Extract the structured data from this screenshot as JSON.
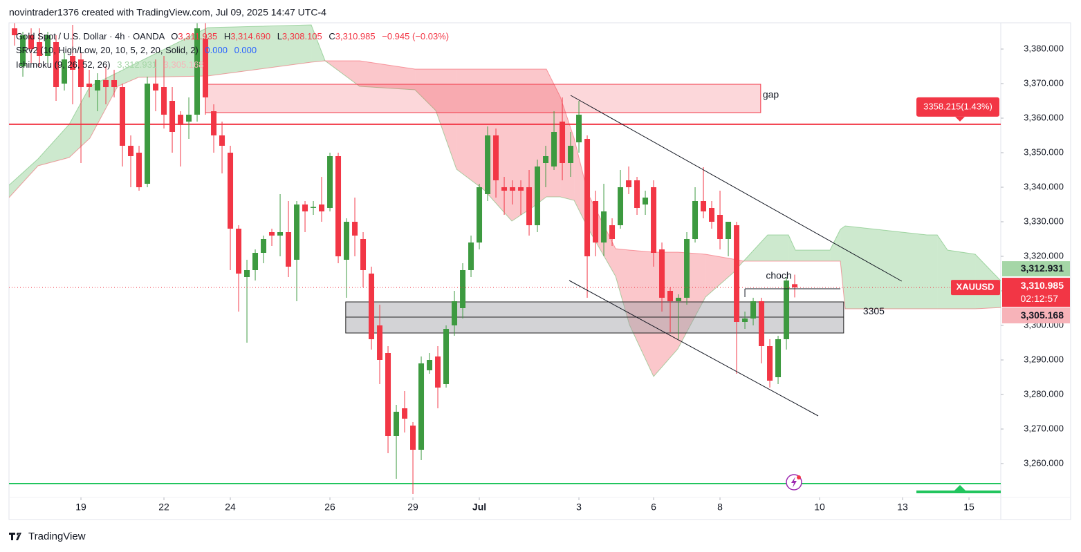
{
  "header": {
    "title": "novintrader1376 created with TradingView.com, Jul 09, 2025 14:47 UTC-4"
  },
  "footer": {
    "brand": "TradingView"
  },
  "chart_data": {
    "type": "candlestick",
    "symbol": "XAUUSD",
    "legend": {
      "instrument": "Gold Spot / U.S. Dollar · 4h · OANDA",
      "fields": [
        {
          "key": "O",
          "value": "3,311.935"
        },
        {
          "key": "H",
          "value": "3,314.690"
        },
        {
          "key": "L",
          "value": "3,308.105"
        },
        {
          "key": "C",
          "value": "3,310.985"
        }
      ],
      "change": "−0.945 (−0.03%)",
      "sr_name": "SRv2 (10, High/Low, 20, 10, 5, 2, 20, Solid, 2)",
      "sr_labels": [
        "0.000",
        "0.000"
      ]
    },
    "colors": {
      "up": "#3d9a40",
      "down": "#f23645"
    },
    "open": [
      3386,
      3375,
      3384,
      3382,
      3378,
      3382,
      3370,
      3378,
      3377,
      3370,
      3368,
      3371,
      3371,
      3369,
      3352,
      3350,
      3341,
      3370,
      3369,
      3365,
      3361,
      3359,
      3361,
      3383,
      3362,
      3355,
      3350,
      3328,
      3314,
      3316,
      3321,
      3327,
      3326,
      3327,
      3319,
      3335,
      3334,
      3335,
      3334,
      3349,
      3319,
      3330,
      3325,
      3315,
      3300,
      3292,
      3268,
      3276,
      3271,
      3264,
      3287,
      3291,
      3283,
      3300,
      3305,
      3316,
      3324,
      3338,
      3355,
      3340,
      3340,
      3340,
      3340,
      3329,
      3347,
      3346,
      3359,
      3347,
      3353,
      3354,
      3336,
      3324,
      3329,
      3329,
      3342,
      3342,
      3335,
      3340,
      3322,
      3310,
      3307,
      3308,
      3325,
      3336,
      3334,
      3332,
      3325,
      3329,
      3301,
      3302,
      3307,
      3294,
      3285,
      3296,
      3311.935
    ],
    "high": [
      3387.5,
      3385,
      3386,
      3386,
      3385,
      3384,
      3379,
      3387,
      3379,
      3374,
      3373,
      3375,
      3374,
      3370,
      3355,
      3352,
      3372,
      3377,
      3378,
      3369,
      3362,
      3366,
      3387.5,
      3387.5,
      3364,
      3359,
      3352,
      3329,
      3319,
      3322,
      3326,
      3328,
      3338,
      3336,
      3336,
      3336,
      3336,
      3343,
      3350,
      3350,
      3331,
      3337,
      3327,
      3317,
      3306,
      3294,
      3277,
      3281,
      3272,
      3291,
      3292,
      3294,
      3300,
      3310,
      3318,
      3326,
      3341,
      3357.6,
      3357,
      3343,
      3342,
      3342,
      3345,
      3348,
      3352,
      3362,
      3366,
      3356,
      3365,
      3355,
      3339,
      3341,
      3331,
      3345,
      3346,
      3343,
      3339,
      3342,
      3324,
      3311,
      3309,
      3327,
      3340,
      3345.8,
      3336,
      3339,
      3330,
      3330,
      3304,
      3308,
      3308,
      3296,
      3297,
      3314,
      3314.69
    ],
    "low": [
      3381,
      3372,
      3376,
      3375,
      3376,
      3365,
      3368,
      3364,
      3347,
      3366,
      3362,
      3364,
      3366,
      3346,
      3340,
      3339,
      3340,
      3362,
      3357,
      3350,
      3346,
      3354,
      3359,
      3361,
      3350,
      3344,
      3316,
      3304,
      3295,
      3313,
      3318,
      3323,
      3320,
      3314,
      3307,
      3327,
      3332,
      3330,
      3333,
      3318,
      3308,
      3320,
      3311,
      3293,
      3283,
      3263,
      3255.6,
      3269,
      3251.2,
      3261,
      3286,
      3276,
      3282,
      3297,
      3302,
      3314,
      3322,
      3336,
      3337,
      3332,
      3335,
      3332,
      3326,
      3327,
      3340,
      3345,
      3342,
      3343,
      3350,
      3308,
      3320,
      3320,
      3323,
      3328,
      3338,
      3332,
      3332,
      3317,
      3304,
      3298,
      3296,
      3306,
      3324,
      3331,
      3328,
      3322,
      3320,
      3286,
      3299,
      3300,
      3289,
      3282,
      3283,
      3293,
      3308.105
    ],
    "close": [
      3384,
      3384,
      3380,
      3378,
      3384,
      3369,
      3377,
      3374,
      3369,
      3369,
      3371,
      3369,
      3369,
      3352,
      3349,
      3340,
      3370,
      3368,
      3361,
      3356,
      3358,
      3361,
      3386,
      3366,
      3355,
      3352,
      3328,
      3315,
      3316,
      3321,
      3325,
      3326,
      3327,
      3317,
      3335,
      3333,
      3334.3,
      3333,
      3349,
      3320,
      3330,
      3326,
      3316,
      3296,
      3290,
      3268,
      3275,
      3273,
      3264,
      3289,
      3290,
      3282,
      3299,
      3307,
      3316,
      3324,
      3340,
      3355,
      3342,
      3339,
      3339,
      3339,
      3329,
      3346,
      3349,
      3356,
      3347,
      3352,
      3361,
      3320,
      3324,
      3333,
      3325,
      3340,
      3340,
      3334,
      3337,
      3321,
      3308,
      3307,
      3308,
      3325,
      3336,
      3333,
      3330,
      3325,
      3330,
      3301,
      3302,
      3307,
      3294,
      3284,
      3296,
      3313,
      3310.985
    ],
    "last_price_label": "3,310.985",
    "countdown": "02:12:57",
    "ichimoku": {
      "name": "Ichimoku (9, 26, 52, 26)",
      "x": [
        -0.67,
        2.83,
        6.58,
        9.08,
        12.42,
        14.92,
        23.25,
        35.75,
        37.42,
        41.58,
        48.25,
        50.75,
        53.25,
        56.58,
        59.92,
        62.42,
        64.08,
        65.75,
        67.42,
        69.08,
        72.42,
        74.08,
        77,
        79.92,
        83.25,
        86.58,
        87.83,
        90.75,
        93.25,
        94.08,
        98.25,
        99.5,
        100.08,
        109.92,
        111.17,
        112.42,
        115.75,
        118.83
      ],
      "span_a": [
        3340.6,
        3348.2,
        3358.2,
        3369.2,
        3373.2,
        3376.2,
        3386.2,
        3387,
        3376.6,
        3369.2,
        3368.2,
        3362.2,
        3345.2,
        3339.2,
        3330.2,
        3334.2,
        3337.2,
        3337.2,
        3336.2,
        3328.2,
        3314.2,
        3300.2,
        3285.2,
        3293.2,
        3308.2,
        3315.2,
        3318.6,
        3326.2,
        3326.2,
        3321.8,
        3321.8,
        3327.8,
        3328.8,
        3326.2,
        3326.2,
        3321.8,
        3320.6,
        3312.931
      ],
      "span_b": [
        3337,
        3346.2,
        3348.6,
        3354.2,
        3369.2,
        3371.8,
        3372.2,
        3376.2,
        3376.6,
        3376.6,
        3374.2,
        3374.2,
        3374.2,
        3374.2,
        3374.2,
        3374.2,
        3374.2,
        3366.2,
        3354.2,
        3338.2,
        3322.2,
        3321.8,
        3321.2,
        3321.2,
        3320.6,
        3319.2,
        3318.6,
        3318.6,
        3318.6,
        3318.6,
        3318.6,
        3318.6,
        3304.8,
        3304.8,
        3304.8,
        3304.8,
        3304.8,
        3305.168
      ],
      "value_labels": [
        "3,312.931",
        "3,305.168"
      ],
      "colors": {
        "up": "#4caf50",
        "down": "#f23645"
      }
    },
    "xlim": [
      -0.67,
      118.83
    ],
    "xticks": [
      {
        "value": 8,
        "label": "19"
      },
      {
        "value": 18,
        "label": "22"
      },
      {
        "value": 26,
        "label": "24"
      },
      {
        "value": 38,
        "label": "26"
      },
      {
        "value": 48,
        "label": "29"
      },
      {
        "value": 56,
        "label": "Jul"
      },
      {
        "value": 68,
        "label": "3"
      },
      {
        "value": 77,
        "label": "6"
      },
      {
        "value": 85,
        "label": "8"
      },
      {
        "value": 97,
        "label": "10"
      },
      {
        "value": 107,
        "label": "13"
      },
      {
        "value": 115,
        "label": "15"
      }
    ],
    "ylim": [
      3250.2,
      3387.6
    ],
    "yticks": [
      {
        "value": 3260,
        "label": "3,260.000"
      },
      {
        "value": 3270,
        "label": "3,270.000"
      },
      {
        "value": 3280,
        "label": "3,280.000"
      },
      {
        "value": 3290,
        "label": "3,290.000"
      },
      {
        "value": 3300,
        "label": "3,300.000"
      },
      {
        "value": 3310,
        "label": "3,310.000"
      },
      {
        "value": 3320,
        "label": "3,320.000"
      },
      {
        "value": 3330,
        "label": "3,330.000"
      },
      {
        "value": 3340,
        "label": "3,340.000"
      },
      {
        "value": 3350,
        "label": "3,350.000"
      },
      {
        "value": 3360,
        "label": "3,360.000"
      },
      {
        "value": 3370,
        "label": "3,370.000"
      },
      {
        "value": 3380,
        "label": "3,380.000"
      }
    ],
    "hlines": [
      {
        "value": 3358.215,
        "label": "3358.215(1.43%)",
        "color": "#f23645"
      },
      {
        "value": 3254.2,
        "color": "#22c55e"
      }
    ],
    "zones": [
      {
        "label": "gap",
        "x": [
          23,
          89.9
        ],
        "y": [
          3361.6,
          3369.8
        ],
        "fill": "#f23645",
        "stroke": "#f23645"
      },
      {
        "label": "3305",
        "x": [
          39.9,
          99.9
        ],
        "y": [
          3297.8,
          3306.8
        ],
        "mid": 3302.4,
        "fill": "#9e9ea3",
        "stroke": "#222222"
      }
    ],
    "trendlines": [
      {
        "x": [
          67,
          106.9
        ],
        "y": [
          3366.6,
          3312.8
        ]
      },
      {
        "x": [
          66.83,
          96.83
        ],
        "y": [
          3313,
          3273.8
        ]
      }
    ],
    "choch": {
      "label": "choch",
      "x": [
        88,
        99.5
      ],
      "y": 3310.6
    }
  }
}
